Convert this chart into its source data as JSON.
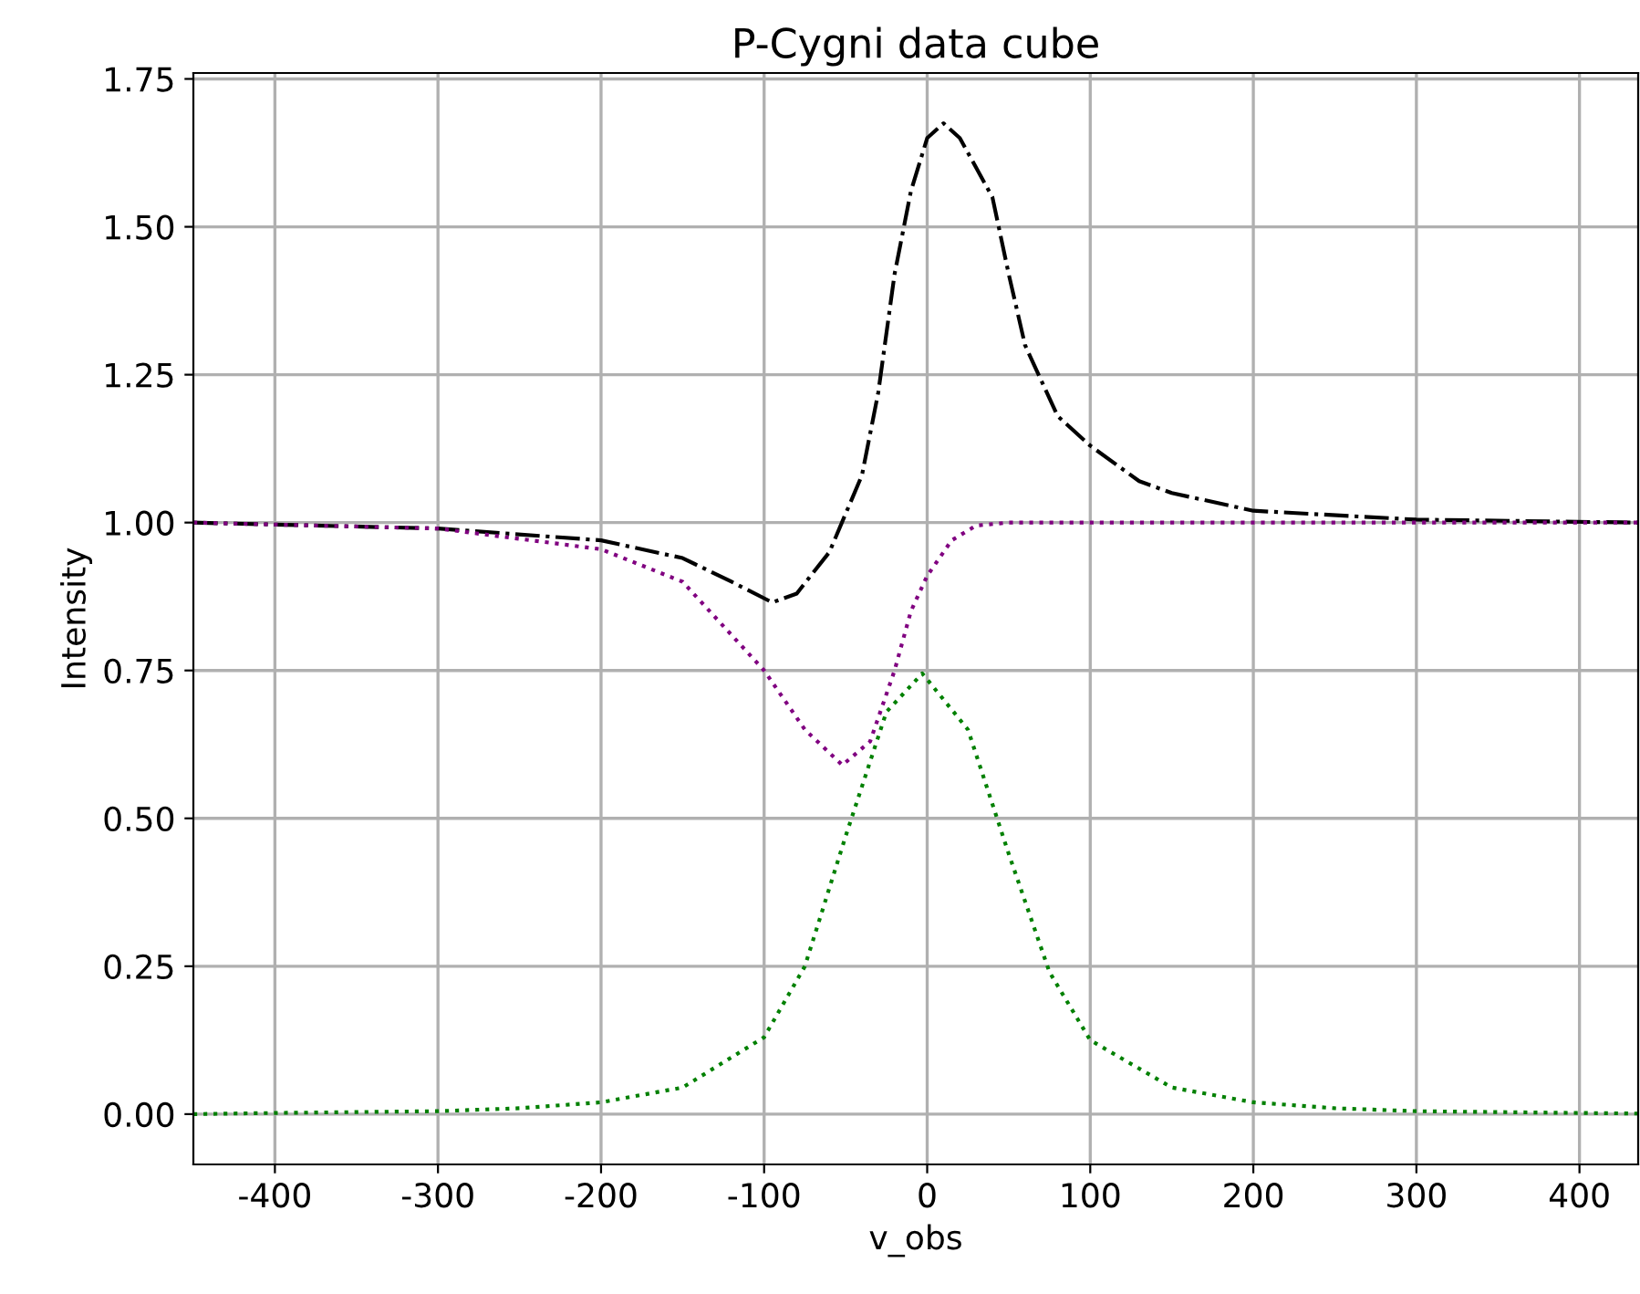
{
  "chart_data": {
    "type": "line",
    "title": "P-Cygni data cube",
    "xlabel": "v_obs",
    "ylabel": "Intensity",
    "xlim": [
      -450,
      436
    ],
    "ylim": [
      -0.085,
      1.76
    ],
    "xticks": [
      -400,
      -300,
      -200,
      -100,
      0,
      100,
      200,
      300,
      400
    ],
    "yticks": [
      {
        "value": 0,
        "label": "0.00"
      },
      {
        "value": 0.25,
        "label": "0.25"
      },
      {
        "value": 0.5,
        "label": "0.50"
      },
      {
        "value": 0.75,
        "label": "0.75"
      },
      {
        "value": 1,
        "label": "1.00"
      },
      {
        "value": 1.25,
        "label": "1.25"
      },
      {
        "value": 1.5,
        "label": "1.50"
      },
      {
        "value": 1.75,
        "label": "1.75"
      }
    ],
    "grid": true,
    "legend": false,
    "series": [
      {
        "color": "#000000",
        "line_style": "dashdot",
        "x": [
          -450,
          -300,
          -200,
          -150,
          -120,
          -95,
          -80,
          -60,
          -40,
          -30,
          -20,
          -10,
          0,
          10,
          20,
          40,
          50,
          60,
          80,
          100,
          130,
          150,
          200,
          300,
          436
        ],
        "values": [
          1.0,
          0.99,
          0.97,
          0.94,
          0.9,
          0.865,
          0.88,
          0.95,
          1.08,
          1.22,
          1.42,
          1.56,
          1.65,
          1.675,
          1.65,
          1.55,
          1.42,
          1.3,
          1.18,
          1.13,
          1.07,
          1.05,
          1.02,
          1.005,
          1.0
        ]
      },
      {
        "color": "#800080",
        "line_style": "dotted",
        "x": [
          -450,
          -300,
          -200,
          -150,
          -100,
          -75,
          -52,
          -35,
          -20,
          -10,
          0,
          15,
          30,
          50,
          436
        ],
        "values": [
          1.0,
          0.99,
          0.955,
          0.9,
          0.75,
          0.65,
          0.59,
          0.63,
          0.75,
          0.85,
          0.91,
          0.97,
          0.995,
          1.0,
          1.0
        ]
      },
      {
        "color": "#008000",
        "line_style": "dotted",
        "x": [
          -450,
          -400,
          -300,
          -250,
          -200,
          -150,
          -100,
          -75,
          -50,
          -25,
          -3,
          25,
          50,
          75,
          100,
          150,
          200,
          250,
          300,
          400,
          436
        ],
        "values": [
          0.0,
          0.002,
          0.005,
          0.01,
          0.02,
          0.045,
          0.13,
          0.25,
          0.47,
          0.68,
          0.745,
          0.65,
          0.44,
          0.24,
          0.125,
          0.045,
          0.02,
          0.01,
          0.005,
          0.002,
          0.001
        ]
      }
    ]
  }
}
